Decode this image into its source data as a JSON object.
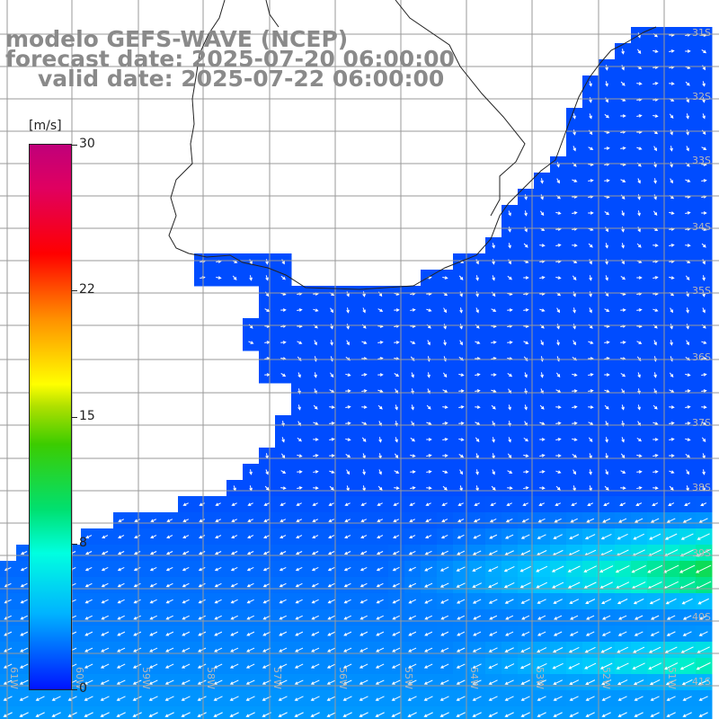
{
  "title": {
    "line1": "modelo GEFS-WAVE (NCEP)",
    "line2": "forecast date: 2025-07-20 06:00:00",
    "line3": "valid date: 2025-07-22 06:00:00"
  },
  "legend": {
    "unit": "[m/s]",
    "ticks": [
      {
        "label": "30",
        "value": 30
      },
      {
        "label": "22",
        "value": 22
      },
      {
        "label": "15",
        "value": 15
      },
      {
        "label": "8",
        "value": 8
      },
      {
        "label": "0",
        "value": 0
      }
    ],
    "min": 0,
    "max": 30
  },
  "latitude_labels": [
    "31S",
    "32S",
    "33S",
    "34S",
    "35S",
    "36S",
    "37S",
    "38S",
    "39S",
    "40S",
    "41S"
  ],
  "longitude_labels": [
    "61W",
    "60W",
    "59W",
    "58W",
    "57W",
    "56W",
    "55W",
    "54W",
    "53W",
    "52W",
    "51W"
  ],
  "colors": {
    "land": "#ffffff",
    "coast": "#222222",
    "grid": "#9a9a9a",
    "title": "#8a8a8a",
    "arrow": "#ffffff"
  },
  "scale_colors": [
    "#0014ff",
    "#00b4ff",
    "#00ffe0",
    "#00e070",
    "#3ccc00",
    "#ffff00",
    "#ff9000",
    "#ff0000",
    "#c0007a"
  ]
}
